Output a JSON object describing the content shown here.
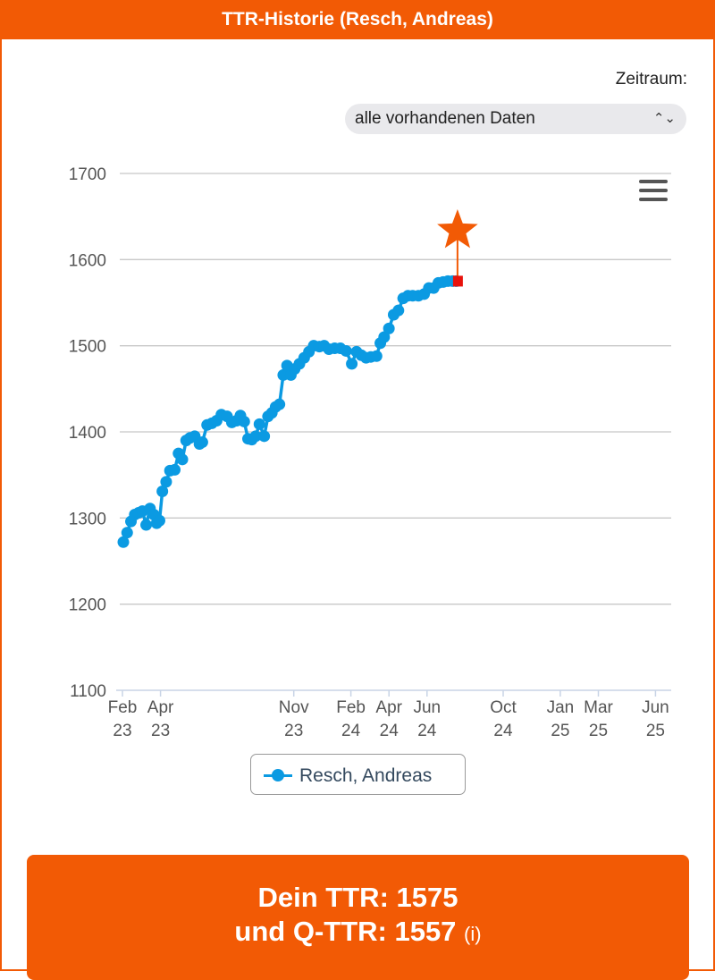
{
  "header": {
    "title": "TTR-Historie (Resch, Andreas)"
  },
  "range": {
    "label": "Zeitraum:",
    "selected": "alle vorhandenen Daten",
    "chevron_icon": "up-down-chevron-icon"
  },
  "menu": {
    "icon": "hamburger-menu-icon"
  },
  "chart_data": {
    "type": "line",
    "title": "",
    "xlabel": "",
    "ylabel": "",
    "ylim": [
      1100,
      1700
    ],
    "yticks": [
      1100,
      1200,
      1300,
      1400,
      1500,
      1600,
      1700
    ],
    "grid": true,
    "legend_position": "bottom-center",
    "line_color": "#0b9ae2",
    "highlight_color": "#e8120c",
    "star_color": "#f25a05",
    "xticks": [
      {
        "month": "Feb",
        "year": "23",
        "t": 0
      },
      {
        "month": "Apr",
        "year": "23",
        "t": 2
      },
      {
        "month": "Nov",
        "year": "23",
        "t": 9
      },
      {
        "month": "Feb",
        "year": "24",
        "t": 12
      },
      {
        "month": "Apr",
        "year": "24",
        "t": 14
      },
      {
        "month": "Jun",
        "year": "24",
        "t": 16
      },
      {
        "month": "Oct",
        "year": "24",
        "t": 20
      },
      {
        "month": "Jan",
        "year": "25",
        "t": 23
      },
      {
        "month": "Mar",
        "year": "25",
        "t": 25
      },
      {
        "month": "Jun",
        "year": "25",
        "t": 28
      }
    ],
    "series": [
      {
        "name": "Resch, Andreas",
        "points": [
          [
            0.0,
            1272
          ],
          [
            0.2,
            1283
          ],
          [
            0.4,
            1296
          ],
          [
            0.6,
            1304
          ],
          [
            0.8,
            1306
          ],
          [
            1.0,
            1308
          ],
          [
            1.2,
            1292
          ],
          [
            1.4,
            1311
          ],
          [
            1.6,
            1304
          ],
          [
            1.75,
            1294
          ],
          [
            1.9,
            1297
          ],
          [
            2.05,
            1331
          ],
          [
            2.25,
            1342
          ],
          [
            2.45,
            1355
          ],
          [
            2.7,
            1356
          ],
          [
            2.9,
            1375
          ],
          [
            3.1,
            1368
          ],
          [
            3.3,
            1390
          ],
          [
            3.5,
            1393
          ],
          [
            3.75,
            1395
          ],
          [
            4.0,
            1386
          ],
          [
            4.15,
            1388
          ],
          [
            4.4,
            1408
          ],
          [
            4.65,
            1410
          ],
          [
            4.9,
            1413
          ],
          [
            5.15,
            1420
          ],
          [
            5.45,
            1418
          ],
          [
            5.7,
            1411
          ],
          [
            5.95,
            1413
          ],
          [
            6.15,
            1419
          ],
          [
            6.35,
            1412
          ],
          [
            6.55,
            1392
          ],
          [
            6.75,
            1391
          ],
          [
            6.95,
            1395
          ],
          [
            7.15,
            1409
          ],
          [
            7.4,
            1395
          ],
          [
            7.6,
            1418
          ],
          [
            7.8,
            1422
          ],
          [
            8.0,
            1429
          ],
          [
            8.2,
            1432
          ],
          [
            8.4,
            1466
          ],
          [
            8.6,
            1477
          ],
          [
            8.8,
            1466
          ],
          [
            9.0,
            1473
          ],
          [
            9.25,
            1479
          ],
          [
            9.5,
            1486
          ],
          [
            9.75,
            1493
          ],
          [
            10.0,
            1500
          ],
          [
            10.3,
            1499
          ],
          [
            10.55,
            1500
          ],
          [
            10.8,
            1496
          ],
          [
            11.1,
            1497
          ],
          [
            11.4,
            1497
          ],
          [
            11.7,
            1494
          ],
          [
            12.0,
            1479
          ],
          [
            12.25,
            1493
          ],
          [
            12.5,
            1489
          ],
          [
            12.75,
            1486
          ],
          [
            13.0,
            1487
          ],
          [
            13.3,
            1488
          ],
          [
            13.5,
            1503
          ],
          [
            13.7,
            1510
          ],
          [
            13.95,
            1520
          ],
          [
            14.2,
            1536
          ],
          [
            14.45,
            1541
          ],
          [
            14.7,
            1555
          ],
          [
            14.95,
            1558
          ],
          [
            15.2,
            1558
          ],
          [
            15.5,
            1558
          ],
          [
            15.8,
            1560
          ],
          [
            16.05,
            1567
          ],
          [
            16.3,
            1567
          ],
          [
            16.55,
            1573
          ],
          [
            16.8,
            1574
          ],
          [
            17.05,
            1575
          ],
          [
            17.3,
            1575
          ],
          [
            17.5,
            1575
          ]
        ]
      }
    ],
    "highlight_point": [
      17.6,
      1575
    ]
  },
  "legend": {
    "label": "Resch, Andreas"
  },
  "footer": {
    "line1": "Dein TTR: 1575",
    "line2": "und Q-TTR: 1557",
    "info": "(i)"
  }
}
